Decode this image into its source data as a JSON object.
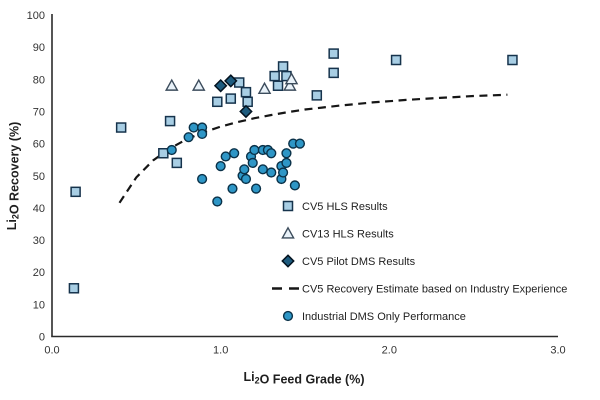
{
  "figure": {
    "background": "#ffffff",
    "text_color": "#333333",
    "axis_color": "#2b2b2b"
  },
  "chart_data": {
    "type": "scatter",
    "title": "",
    "xlabel": "Li₂O Feed Grade (%)",
    "ylabel": "Li₂O Recovery (%)",
    "xlabel_parts": [
      {
        "t": "Li"
      },
      {
        "t": "2",
        "sub": true
      },
      {
        "t": "O Feed Grade (%)"
      }
    ],
    "ylabel_parts": [
      {
        "t": "Li"
      },
      {
        "t": "2",
        "sub": true
      },
      {
        "t": "O Recovery (%)"
      }
    ],
    "xlim": [
      0.0,
      3.0
    ],
    "ylim": [
      0,
      100
    ],
    "x_tick_labels": [
      "0.0",
      "1.0",
      "2.0",
      "3.0"
    ],
    "x_tick_values": [
      0,
      1,
      2,
      3
    ],
    "y_tick_values": [
      0,
      10,
      20,
      30,
      40,
      50,
      60,
      70,
      80,
      90,
      100
    ],
    "grid": false,
    "legend_position": "inside lower right",
    "series": [
      {
        "key": "cv5_hls",
        "name": "CV5 HLS Results",
        "marker": "square",
        "fill": "#A8CEE4",
        "edge": "#16334C",
        "points": [
          [
            0.13,
            15
          ],
          [
            0.14,
            45
          ],
          [
            0.41,
            65
          ],
          [
            0.66,
            57
          ],
          [
            0.7,
            67
          ],
          [
            0.74,
            54
          ],
          [
            0.98,
            73
          ],
          [
            1.06,
            74
          ],
          [
            1.16,
            73
          ],
          [
            1.11,
            79
          ],
          [
            1.15,
            76
          ],
          [
            1.32,
            81
          ],
          [
            1.34,
            78
          ],
          [
            1.37,
            84
          ],
          [
            1.39,
            81
          ],
          [
            1.57,
            75
          ],
          [
            1.67,
            88
          ],
          [
            1.67,
            82
          ],
          [
            2.04,
            86
          ],
          [
            2.73,
            86
          ]
        ]
      },
      {
        "key": "cv13_hls",
        "name": "CV13 HLS Results",
        "marker": "triangle",
        "fill": "#E9F2F9",
        "edge": "#3C4C5C",
        "points": [
          [
            0.71,
            78
          ],
          [
            0.87,
            78
          ],
          [
            1.26,
            77
          ],
          [
            1.41,
            78
          ],
          [
            1.42,
            80
          ]
        ]
      },
      {
        "key": "cv5_pilot_dms",
        "name": "CV5 Pilot DMS Results",
        "marker": "diamond",
        "fill": "#1D5B7E",
        "edge": "#03121F",
        "points": [
          [
            1.0,
            78
          ],
          [
            1.06,
            79.5
          ],
          [
            1.15,
            70
          ]
        ]
      },
      {
        "key": "cv5_estimate",
        "name": "CV5 Recovery Estimate based on Industry Experience",
        "marker": "dash",
        "type": "line",
        "stroke": "#161616",
        "points": [
          [
            0.4,
            41.6
          ],
          [
            0.5,
            49.5
          ],
          [
            0.6,
            54.8
          ],
          [
            0.7,
            58.5
          ],
          [
            0.8,
            61.4
          ],
          [
            0.9,
            63.5
          ],
          [
            1.0,
            65.3
          ],
          [
            1.1,
            66.7
          ],
          [
            1.2,
            67.9
          ],
          [
            1.3,
            68.9
          ],
          [
            1.4,
            69.8
          ],
          [
            1.5,
            70.6
          ],
          [
            1.6,
            71.2
          ],
          [
            1.7,
            71.8
          ],
          [
            1.8,
            72.3
          ],
          [
            1.9,
            72.8
          ],
          [
            2.0,
            73.2
          ],
          [
            2.1,
            73.6
          ],
          [
            2.2,
            73.9
          ],
          [
            2.3,
            74.2
          ],
          [
            2.4,
            74.5
          ],
          [
            2.5,
            74.8
          ],
          [
            2.6,
            75.0
          ],
          [
            2.7,
            75.2
          ]
        ]
      },
      {
        "key": "industrial_dms",
        "name": "Industrial DMS Only Performance",
        "marker": "circle",
        "fill": "#2E96C6",
        "edge": "#0A3148",
        "points": [
          [
            0.71,
            58
          ],
          [
            0.81,
            62
          ],
          [
            0.84,
            65
          ],
          [
            0.89,
            65
          ],
          [
            0.89,
            63
          ],
          [
            0.89,
            49
          ],
          [
            0.98,
            42
          ],
          [
            1.0,
            53
          ],
          [
            1.03,
            56
          ],
          [
            1.07,
            46
          ],
          [
            1.08,
            57
          ],
          [
            1.13,
            50
          ],
          [
            1.14,
            52
          ],
          [
            1.15,
            49
          ],
          [
            1.18,
            56
          ],
          [
            1.19,
            54
          ],
          [
            1.2,
            58
          ],
          [
            1.21,
            46
          ],
          [
            1.25,
            58
          ],
          [
            1.25,
            52
          ],
          [
            1.28,
            58
          ],
          [
            1.3,
            57
          ],
          [
            1.3,
            51
          ],
          [
            1.36,
            53
          ],
          [
            1.36,
            49
          ],
          [
            1.37,
            51
          ],
          [
            1.39,
            57
          ],
          [
            1.39,
            54
          ],
          [
            1.43,
            60
          ],
          [
            1.44,
            47
          ],
          [
            1.47,
            60
          ]
        ]
      }
    ]
  }
}
